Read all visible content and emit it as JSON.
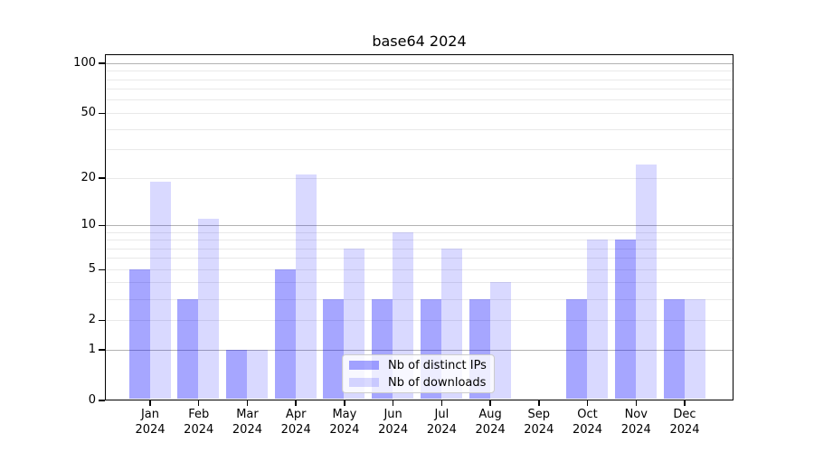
{
  "title": "base64 2024",
  "chart_data": {
    "type": "bar",
    "title": "base64 2024",
    "categories": [
      "Jan",
      "Feb",
      "Mar",
      "Apr",
      "May",
      "Jun",
      "Jul",
      "Aug",
      "Sep",
      "Oct",
      "Nov",
      "Dec"
    ],
    "year_label": "2024",
    "series": [
      {
        "name": "Nb of distinct IPs",
        "color": "#0000ff",
        "alpha": 0.35,
        "values": [
          5,
          3,
          1,
          5,
          3,
          3,
          3,
          3,
          0,
          3,
          8,
          3
        ]
      },
      {
        "name": "Nb of downloads",
        "color": "#0000ff",
        "alpha": 0.15,
        "values": [
          19,
          11,
          1,
          21,
          7,
          9,
          7,
          4,
          0,
          8,
          24,
          3
        ]
      }
    ],
    "xlabel": "",
    "ylabel": "",
    "yscale": "log1p",
    "ylim": [
      0,
      100
    ],
    "yticks": [
      0,
      1,
      2,
      5,
      10,
      20,
      50,
      100
    ],
    "major_gridlines": [
      1,
      10,
      100
    ],
    "minor_gridlines": [
      2,
      3,
      4,
      5,
      6,
      7,
      8,
      9,
      20,
      30,
      40,
      50,
      60,
      70,
      80,
      90
    ],
    "grid": "on",
    "legend_position": "lower center",
    "frame": "full box",
    "axis_color": "#000000",
    "major_grid_color": "#b3b3b3",
    "minor_grid_color": "#e9e9e9"
  }
}
